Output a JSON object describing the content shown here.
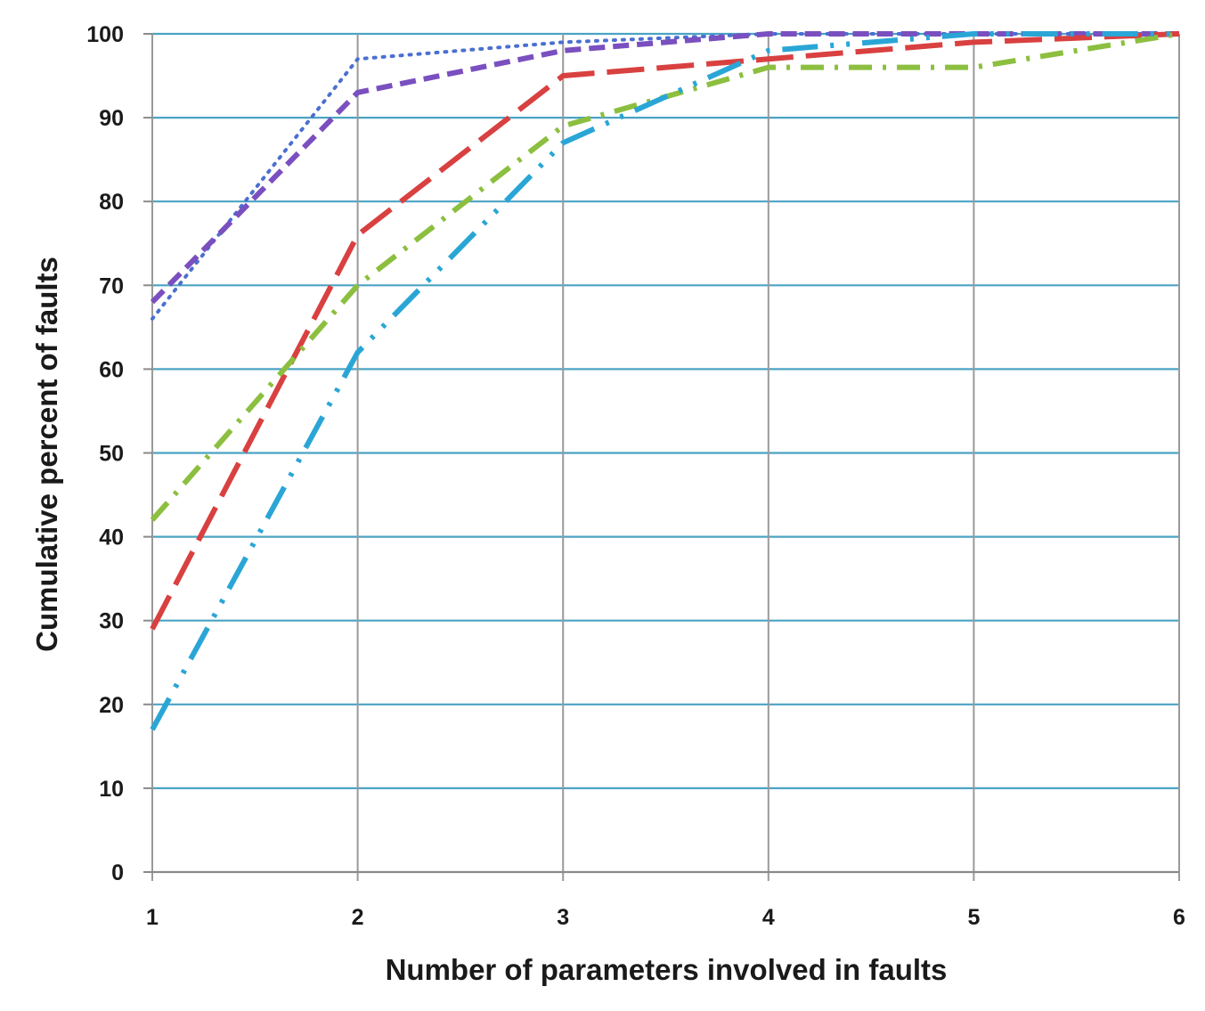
{
  "chart_data": {
    "type": "line",
    "title": "",
    "xlabel": "Number of parameters involved in faults",
    "ylabel": "Cumulative percent of faults",
    "x": [
      1,
      2,
      3,
      4,
      5,
      6
    ],
    "xlim": [
      1,
      6
    ],
    "ylim": [
      0,
      100
    ],
    "x_ticks": [
      "1",
      "2",
      "3",
      "4",
      "5",
      "6"
    ],
    "y_ticks": [
      "0",
      "10",
      "20",
      "30",
      "40",
      "50",
      "60",
      "70",
      "80",
      "90",
      "100"
    ],
    "grid": true,
    "legend": "none",
    "colors": {
      "grid": "#4ba3c3",
      "vertical_grid": "#9a9a9a",
      "axis": "#8a8a8a"
    },
    "series": [
      {
        "color": "#4a6fd0",
        "style": "dotted",
        "values": [
          66,
          97,
          99,
          100,
          100,
          100
        ]
      },
      {
        "color": "#7a4fbf",
        "style": "dashed",
        "values": [
          68,
          93,
          98,
          100,
          100,
          100
        ]
      },
      {
        "color": "#d94040",
        "style": "long-dash",
        "values": [
          29,
          76,
          95,
          97,
          99,
          100
        ]
      },
      {
        "color": "#8cbf3f",
        "style": "dash-dot",
        "values": [
          42,
          70,
          89,
          96,
          96,
          100
        ]
      },
      {
        "color": "#2aa6d6",
        "style": "long-dash-dot-dot",
        "values": [
          17,
          62,
          87,
          98,
          100,
          100
        ]
      }
    ]
  }
}
